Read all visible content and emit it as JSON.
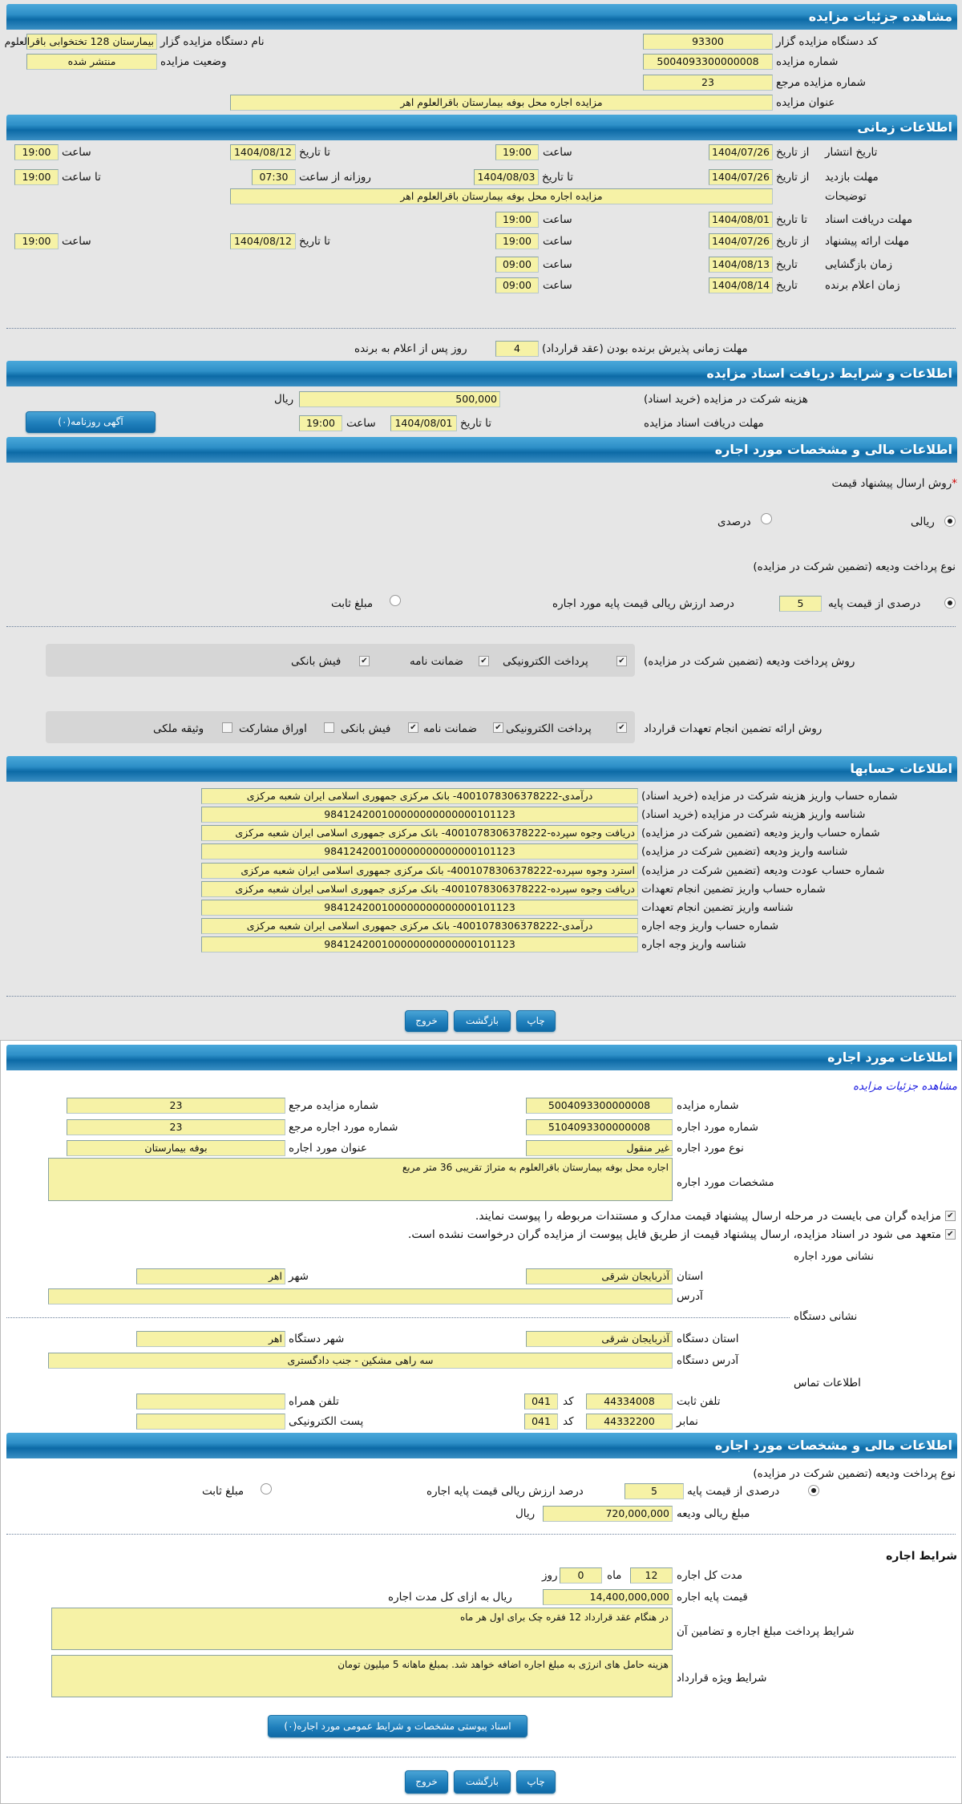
{
  "auction": {
    "header": "مشاهده جزئیات مزایده",
    "device_code_label": "کد دستگاه مزایده گزار",
    "device_code": "93300",
    "device_name_label": "نام دستگاه مزایده گزار",
    "device_name": "بیمارستان 128 تختخوابی باقرالعلوم",
    "auction_no_label": "شماره مزایده",
    "auction_no": "5004093300000008",
    "status_label": "وضعیت مزایده",
    "status": "منتشر شده",
    "ref_no_label": "شماره مزایده مرجع",
    "ref_no": "23",
    "title_label": "عنوان مزایده",
    "title": "مزایده اجاره محل بوفه بیمارستان باقرالعلوم اهر"
  },
  "timing": {
    "header": "اطلاعات زمانی",
    "publish": {
      "label": "تاریخ انتشار",
      "from_label": "از تاریخ",
      "from": "1404/07/26",
      "time1_label": "ساعت",
      "time1": "19:00",
      "to_label": "تا تاریخ",
      "to": "1404/08/12",
      "time2_label": "ساعت",
      "time2": "19:00"
    },
    "visit": {
      "label": "مهلت بازدید",
      "from_label": "از تاریخ",
      "from": "1404/07/26",
      "to_label": "تا تاریخ",
      "to": "1404/08/03",
      "daily_from_label": "روزانه از ساعت",
      "daily_from": "07:30",
      "daily_to_label": "تا ساعت",
      "daily_to": "19:00"
    },
    "notes_label": "توضیحات",
    "notes": "مزایده اجاره محل بوفه بیمارستان باقرالعلوم اهر",
    "docs": {
      "label": "مهلت دریافت اسناد",
      "to_label": "تا تاریخ",
      "to": "1404/08/01",
      "time_label": "ساعت",
      "time": "19:00"
    },
    "offer": {
      "label": "مهلت ارائه پیشنهاد",
      "from_label": "از تاریخ",
      "from": "1404/07/26",
      "time1_label": "ساعت",
      "time1": "19:00",
      "to_label": "تا تاریخ",
      "to": "1404/08/12",
      "time2_label": "ساعت",
      "time2": "19:00"
    },
    "opening": {
      "label": "زمان بازگشایی",
      "date_label": "تاریخ",
      "date": "1404/08/13",
      "time_label": "ساعت",
      "time": "09:00"
    },
    "winner": {
      "label": "زمان اعلام برنده",
      "date_label": "تاریخ",
      "date": "1404/08/14",
      "time_label": "ساعت",
      "time": "09:00"
    },
    "acceptance_label": "مهلت زمانی پذیرش برنده بودن (عقد قرارداد)",
    "acceptance_days": "4",
    "acceptance_suffix": "روز پس از اعلام به برنده"
  },
  "docs_section": {
    "header": "اطلاعات و شرایط دریافت اسناد مزایده",
    "fee_label": "هزینه شرکت در مزایده (خرید اسناد)",
    "fee": "500,000",
    "fee_unit": "ریال",
    "deadline_label": "مهلت دریافت اسناد مزایده",
    "to_label": "تا تاریخ",
    "to": "1404/08/01",
    "time_label": "ساعت",
    "time": "19:00",
    "newspaper_button": "آگهی روزنامه(۰)"
  },
  "financial": {
    "header": "اطلاعات مالی و مشخصات مورد اجاره",
    "required_mark": "*",
    "price_method_label": "روش ارسال پیشنهاد قیمت",
    "price_methods": [
      {
        "label": "ریالی",
        "selected": true
      },
      {
        "label": "درصدی",
        "selected": false
      }
    ],
    "deposit_type_label": "نوع پرداخت ودیعه (تضمین شرکت در مزایده)",
    "deposit_percent_label": "درصدی از قیمت پایه",
    "deposit_percent_selected": true,
    "deposit_percent": "5",
    "deposit_percent_suffix": "درصد ارزش ریالی قیمت پایه مورد اجاره",
    "deposit_fixed_label": "مبلغ ثابت",
    "deposit_fixed_selected": false,
    "deposit_methods_label": "روش پرداخت ودیعه (تضمین شرکت در مزایده)",
    "deposit_methods": [
      {
        "label": "پرداخت الکترونیکی",
        "checked": true
      },
      {
        "label": "ضمانت نامه",
        "checked": true
      },
      {
        "label": "فیش بانکی",
        "checked": true
      }
    ],
    "guarantee_methods_label": "روش ارائه تضمین انجام تعهدات قرارداد",
    "guarantee_methods": [
      {
        "label": "پرداخت الکترونیکی",
        "checked": true
      },
      {
        "label": "ضمانت نامه",
        "checked": true
      },
      {
        "label": "فیش بانکی",
        "checked": true
      },
      {
        "label": "اوراق مشارکت",
        "checked": false
      },
      {
        "label": "وثیقه ملکی",
        "checked": false
      }
    ]
  },
  "accounts": {
    "header": "اطلاعات حسابها",
    "rows": [
      {
        "label": "شماره حساب واریز هزینه شرکت در مزایده (خرید اسناد)",
        "value": "درآمدی-4001078306378222- بانک مرکزی جمهوری اسلامی ایران شعبه مرکزی"
      },
      {
        "label": "شناسه واریز هزینه شرکت در مزایده (خرید اسناد)",
        "value": "984124200100000000000000101123"
      },
      {
        "label": "شماره حساب واریز ودیعه (تضمین شرکت در مزایده)",
        "value": "دریافت وجوه سپرده-4001078306378222- بانک مرکزی جمهوری اسلامی ایران شعبه مرکزی"
      },
      {
        "label": "شناسه واریز ودیعه (تضمین شرکت در مزایده)",
        "value": "984124200100000000000000101123"
      },
      {
        "label": "شماره حساب عودت ودیعه (تضمین شرکت در مزایده)",
        "value": "استرد وجوه سپرده-4001078306378222- بانک مرکزی جمهوری اسلامی ایران شعبه مرکزی"
      },
      {
        "label": "شماره حساب واریز تضمین انجام تعهدات",
        "value": "دریافت وجوه سپرده-4001078306378222- بانک مرکزی جمهوری اسلامی ایران شعبه مرکزی"
      },
      {
        "label": "شناسه واریز تضمین انجام تعهدات",
        "value": "984124200100000000000000101123"
      },
      {
        "label": "شماره حساب واریز وجه اجاره",
        "value": "درآمدی-4001078306378222- بانک مرکزی جمهوری اسلامی ایران شعبه مرکزی"
      },
      {
        "label": "شناسه واریز وجه اجاره",
        "value": "984124200100000000000000101123"
      }
    ]
  },
  "actions": {
    "print": "چاپ",
    "back": "بازگشت",
    "exit": "خروج"
  },
  "lease": {
    "header": "اطلاعات مورد اجاره",
    "view_link": "مشاهده جزئیات مزایده",
    "auction_no_label": "شماره مزایده",
    "auction_no": "5004093300000008",
    "ref_no_label": "شماره مزایده مرجع",
    "ref_no": "23",
    "lease_no_label": "شماره مورد اجاره",
    "lease_no": "5104093300000008",
    "lease_ref_label": "شماره مورد اجاره مرجع",
    "lease_ref": "23",
    "type_label": "نوع مورد اجاره",
    "type": "غیر منقول",
    "title_label": "عنوان مورد اجاره",
    "title": "بوفه بیمارستان",
    "spec_label": "مشخصات مورد اجاره",
    "spec": "اجاره محل بوفه بیمارستان باقرالعلوم به متراژ تقریبی 36 متر مربع",
    "notice1": "مزایده گران می بایست در مرحله ارسال پیشنهاد قیمت مدارک و مستندات مربوطه را پیوست نمایند.",
    "notice2": "متعهد می شود در اسناد مزایده، ارسال پیشنهاد قیمت از طریق فایل پیوست از مزایده گران درخواست نشده است.",
    "address_title": "نشانی مورد اجاره",
    "province_label": "استان",
    "province": "آذربایجان شرقی",
    "city_label": "شهر",
    "city": "اهر",
    "address_label": "آدرس",
    "address": "",
    "device_address_title": "نشانی دستگاه",
    "device_province_label": "استان دستگاه",
    "device_province": "آذربایجان شرقی",
    "device_city_label": "شهر دستگاه",
    "device_city": "اهر",
    "device_address_label": "آدرس دستگاه",
    "device_address": "سه راهی مشکین - جنب دادگستری",
    "contact_title": "اطلاعات تماس",
    "phone_label": "تلفن ثابت",
    "phone": "44334008",
    "code_label": "کد",
    "phone_code": "041",
    "mobile_label": "تلفن همراه",
    "mobile": "",
    "fax_label": "نمابر",
    "fax": "44332200",
    "fax_code": "041",
    "email_label": "پست الکترونیکی",
    "email": ""
  },
  "lease_financial": {
    "header": "اطلاعات مالی و مشخصات مورد اجاره",
    "deposit_type_label": "نوع پرداخت ودیعه (تضمین شرکت در مزایده)",
    "percent_label": "درصدی از قیمت پایه",
    "percent_selected": true,
    "percent": "5",
    "percent_suffix": "درصد ارزش ریالی قیمت پایه اجاره",
    "fixed_label": "مبلغ ثابت",
    "fixed_selected": false,
    "deposit_amount_label": "مبلغ ریالی ودیعه",
    "deposit_amount": "720,000,000",
    "unit": "ریال",
    "terms_title": "شرایط اجاره",
    "duration_label": "مدت کل اجاره",
    "months": "12",
    "months_label": "ماه",
    "days": "0",
    "days_label": "روز",
    "base_price_label": "قیمت پایه اجاره",
    "base_price": "14,400,000,000",
    "base_price_suffix": "ریال به ازای کل مدت اجاره",
    "payment_terms_label": "شرایط پرداخت مبلغ اجاره و تضامین آن",
    "payment_terms": "در هنگام عقد قرارداد 12 فقره چک برای اول هر ماه",
    "special_terms_label": "شرایط ویژه قرارداد",
    "special_terms": "هزینه حامل های انرژی به مبلغ اجاره اضافه خواهد شد. بمبلغ ماهانه 5 میلیون تومان",
    "attachments_button": "اسناد پیوستی مشخصات و شرایط عمومی مورد اجاره(۰)"
  }
}
